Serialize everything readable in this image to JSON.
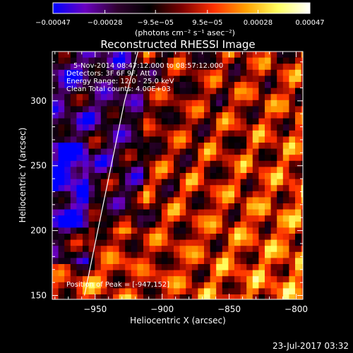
{
  "chart_data": {
    "type": "heatmap",
    "title": "Reconstructed RHESSI Image",
    "xlabel": "Heliocentric X (arcsec)",
    "ylabel": "Heliocentric Y (arcsec)",
    "xlim": [
      -982,
      -795
    ],
    "ylim": [
      147,
      338
    ],
    "x_ticks": [
      -950,
      -900,
      -850,
      -800
    ],
    "x_tick_labels": [
      "−950",
      "−900",
      "−850",
      "−800"
    ],
    "y_ticks": [
      150,
      200,
      250,
      300
    ],
    "y_tick_labels": [
      "150",
      "200",
      "250",
      "300"
    ],
    "colorbar": {
      "range": [
        -0.00047,
        0.00047
      ],
      "ticks": [
        -0.00047,
        -0.00028,
        -9.5e-05,
        9.5e-05,
        0.00028,
        0.00047
      ],
      "tick_labels": [
        "−0.00047",
        "−0.00028",
        "−9.5e−05",
        "9.5e−05",
        "0.00028",
        "0.00047"
      ],
      "unit_label": "(photons cm⁻² s⁻¹ asec⁻²)",
      "colors": [
        "#0000ff",
        "#6a00c0",
        "#300030",
        "#000000",
        "#7a0000",
        "#ff3000",
        "#ffa000",
        "#ffff60",
        "#ffffff"
      ]
    },
    "annotations": [
      "5-Nov-2014 08:47:12.000 to 08:57:12.000",
      "Detectors: 3F 6F 9F, Att 0",
      "Energy Range: 12.0 - 25.0 keV",
      "Clean     Total counts: 4.00E+03"
    ],
    "peak_label": "Position of Peak = [-947,152]",
    "peak_position": [
      -947,
      152
    ],
    "limb": {
      "x": [
        -958,
        -948,
        -938,
        -928,
        -918
      ],
      "y": [
        150,
        200,
        250,
        300,
        338
      ]
    },
    "grid": false
  },
  "footer": {
    "date": "23-Jul-2017 03:32"
  }
}
